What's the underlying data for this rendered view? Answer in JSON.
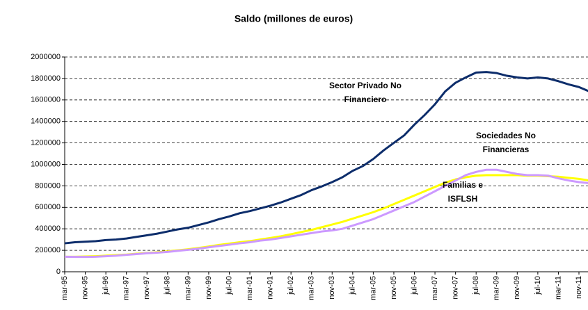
{
  "chart_data": {
    "type": "line",
    "title": "Saldo (millones de euros)",
    "categories": [
      "mar-95",
      null,
      "nov-95",
      null,
      "jul-96",
      null,
      "mar-97",
      null,
      "nov-97",
      null,
      "jul-98",
      null,
      "mar-99",
      null,
      "nov-99",
      null,
      "jul-00",
      null,
      "mar-01",
      null,
      "nov-01",
      null,
      "jul-02",
      null,
      "mar-03",
      null,
      "nov-03",
      null,
      "jul-04",
      null,
      "mar-05",
      null,
      "nov-05",
      null,
      "jul-06",
      null,
      "mar-07",
      null,
      "nov-07",
      null,
      "jul-08",
      null,
      "mar-09",
      null,
      "nov-09",
      null,
      "jul-10",
      null,
      "mar-11",
      null,
      "nov-11",
      null
    ],
    "series": [
      {
        "name": "Sector Privado No Financiero",
        "color": "#0d2d6b",
        "values": [
          265000,
          275000,
          280000,
          285000,
          295000,
          300000,
          310000,
          325000,
          340000,
          355000,
          375000,
          395000,
          410000,
          435000,
          460000,
          490000,
          515000,
          545000,
          565000,
          590000,
          615000,
          645000,
          680000,
          715000,
          760000,
          795000,
          835000,
          880000,
          940000,
          985000,
          1050000,
          1130000,
          1200000,
          1270000,
          1370000,
          1460000,
          1560000,
          1680000,
          1760000,
          1810000,
          1855000,
          1860000,
          1850000,
          1825000,
          1810000,
          1800000,
          1810000,
          1800000,
          1775000,
          1745000,
          1720000,
          1680000
        ]
      },
      {
        "name": "Sociedades No Financieras",
        "color": "#cc99ff",
        "values": [
          140000,
          138000,
          138000,
          140000,
          145000,
          150000,
          158000,
          165000,
          172000,
          178000,
          185000,
          195000,
          205000,
          215000,
          228000,
          240000,
          252000,
          265000,
          275000,
          290000,
          300000,
          315000,
          330000,
          345000,
          360000,
          375000,
          385000,
          400000,
          430000,
          460000,
          490000,
          530000,
          570000,
          610000,
          650000,
          700000,
          750000,
          800000,
          850000,
          900000,
          930000,
          950000,
          950000,
          930000,
          910000,
          900000,
          900000,
          895000,
          870000,
          850000,
          835000,
          825000
        ]
      },
      {
        "name": "Familias e ISFLSH",
        "color": "#ffff00",
        "values": [
          140000,
          140000,
          142000,
          145000,
          150000,
          155000,
          160000,
          168000,
          175000,
          182000,
          190000,
          200000,
          210000,
          222000,
          235000,
          250000,
          262000,
          275000,
          285000,
          300000,
          315000,
          330000,
          350000,
          370000,
          390000,
          415000,
          440000,
          465000,
          495000,
          525000,
          555000,
          590000,
          630000,
          670000,
          710000,
          750000,
          790000,
          830000,
          860000,
          880000,
          895000,
          900000,
          900000,
          900000,
          900000,
          895000,
          895000,
          890000,
          885000,
          875000,
          865000,
          850000
        ]
      }
    ],
    "ylim": [
      0,
      2000000
    ],
    "yticks": [
      0,
      200000,
      400000,
      600000,
      800000,
      1000000,
      1200000,
      1400000,
      1600000,
      1800000,
      2000000
    ],
    "grid": true
  }
}
